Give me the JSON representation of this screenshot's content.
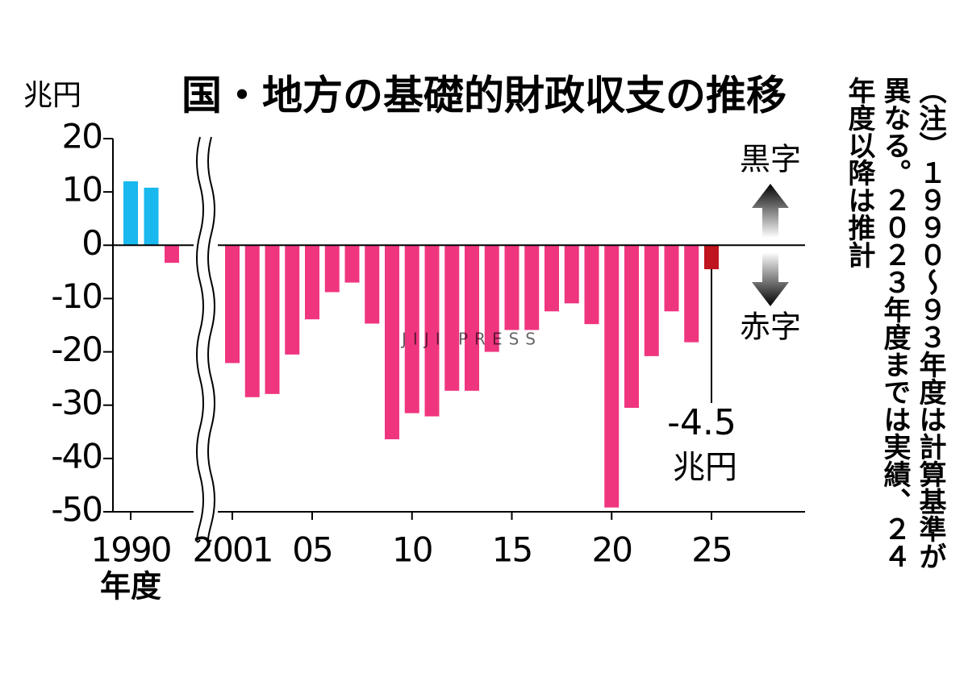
{
  "chart_data": {
    "type": "bar",
    "title": "国・地方の基礎的財政収支の推移",
    "y_label": "兆円",
    "x_label": "年度",
    "categories": [
      "1990",
      null,
      null,
      "2001",
      null,
      null,
      null,
      "05",
      null,
      null,
      null,
      null,
      "10",
      null,
      null,
      null,
      null,
      "15",
      null,
      null,
      null,
      null,
      "20",
      null,
      null,
      null,
      null,
      "25"
    ],
    "values": [
      12,
      10.8,
      -3.3,
      -22.1,
      -28.5,
      -27.9,
      -20.5,
      -13.9,
      -8.8,
      -7.0,
      -14.7,
      -36.4,
      -31.5,
      -32.1,
      -27.3,
      -27.3,
      -20.0,
      -15.9,
      -15.9,
      -12.4,
      -10.9,
      -14.8,
      -49.2,
      -30.5,
      -20.8,
      -12.4,
      -18.2,
      -4.5
    ],
    "colors": [
      "#19b8ee",
      "#19b8ee",
      "#f0357f",
      "#f0357f",
      "#f0357f",
      "#f0357f",
      "#f0357f",
      "#f0357f",
      "#f0357f",
      "#f0357f",
      "#f0357f",
      "#f0357f",
      "#f0357f",
      "#f0357f",
      "#f0357f",
      "#f0357f",
      "#f0357f",
      "#f0357f",
      "#f0357f",
      "#f0357f",
      "#f0357f",
      "#f0357f",
      "#f0357f",
      "#f0357f",
      "#f0357f",
      "#f0357f",
      "#f0357f",
      "#c0141e"
    ],
    "ylim": [
      -50,
      20
    ],
    "yticks": [
      -50,
      -40,
      -30,
      -20,
      -10,
      0,
      10,
      20
    ],
    "callout_unit": "兆円",
    "surplus_label": "黒字",
    "deficit_label": "赤字",
    "watermark": "JIJI PRESS",
    "note": "（注）１９９０～９３年度は計算基準が異なる。２０２３年度までは実績、２４年度以降は推計"
  }
}
